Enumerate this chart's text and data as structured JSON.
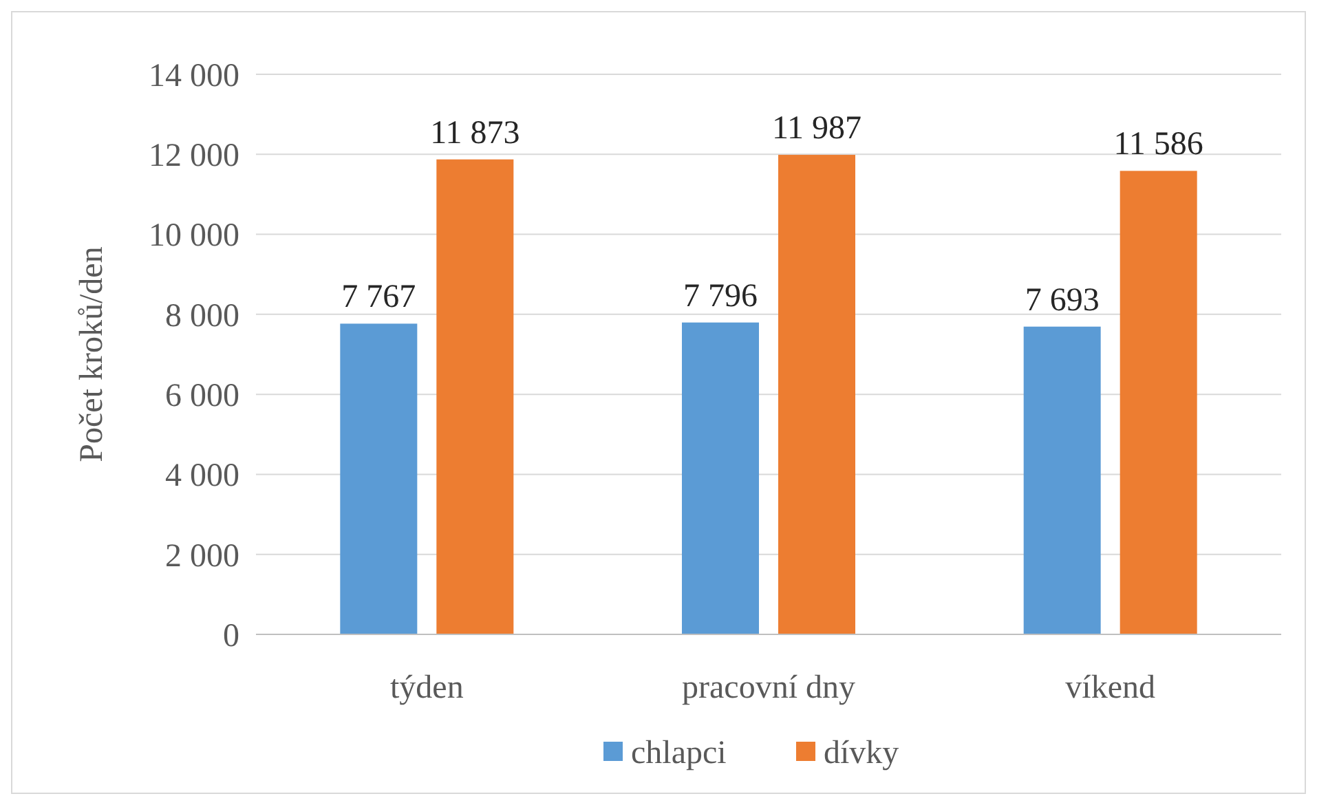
{
  "chart_data": {
    "type": "bar",
    "ylabel": "Počet kroků/den",
    "categories": [
      "týden",
      "pracovní dny",
      "víkend"
    ],
    "series": [
      {
        "name": "chlapci",
        "color": "#5b9bd5",
        "values": [
          7767,
          7796,
          7693
        ],
        "value_labels": [
          "7 767",
          "7 796",
          "7 693"
        ]
      },
      {
        "name": "dívky",
        "color": "#ed7d31",
        "values": [
          11873,
          11987,
          11586
        ],
        "value_labels": [
          "11 873",
          "11 987",
          "11 586"
        ]
      }
    ],
    "ylim": [
      0,
      14000
    ],
    "yticks": [
      {
        "value": 0,
        "label": "0"
      },
      {
        "value": 2000,
        "label": "2 000"
      },
      {
        "value": 4000,
        "label": "4 000"
      },
      {
        "value": 6000,
        "label": "6 000"
      },
      {
        "value": 8000,
        "label": "8 000"
      },
      {
        "value": 10000,
        "label": "10 000"
      },
      {
        "value": 12000,
        "label": "12 000"
      },
      {
        "value": 14000,
        "label": "14 000"
      }
    ],
    "grid": "y",
    "legend": "bottom"
  }
}
